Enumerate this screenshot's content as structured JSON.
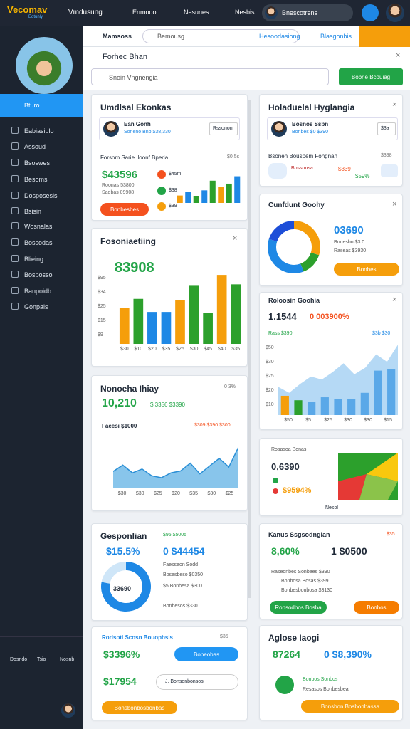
{
  "topbar": {
    "logo": "Vecomav",
    "logo_sub": "Edtunly",
    "nav": [
      "Vmdusung",
      "Enmodo",
      "Nesunes",
      "Nesbis"
    ],
    "search": "Bnescotrens"
  },
  "sidebar": {
    "active": "Bturo",
    "items": [
      "Eabiasiulo",
      "Assoud",
      "Bsoswes",
      "Besoms",
      "Dosposesis",
      "Bsisin",
      "Wosnalas",
      "Bossodas",
      "Blieing",
      "Bosposso",
      "Banpoidb",
      "Gonpais"
    ],
    "bottom": [
      "Dosndo",
      "Tsio",
      "Nosnb"
    ]
  },
  "toolbar": {
    "tabs": [
      "Mamsoss",
      "Bemousg",
      "Hesoodasiong",
      "Blasgonbis"
    ]
  },
  "panel": {
    "title": "Forhec Bhan",
    "search": "Snoin Vngnengia",
    "button": "Bobrie Bcouiag"
  },
  "left_cards": [
    {
      "title": "Umdlsal Ekonkas",
      "profile_name": "Ean Gonh",
      "profile_sub": "Soneno Bnb $38,330",
      "profile_button": "Rssonon",
      "section": "Forsom Sarie Iloonf Bperia",
      "section_note": "$0.5s",
      "value": "$43596",
      "lines": [
        "Roonas 53800",
        "Sadbas 09908"
      ],
      "button": "Bonbesbes",
      "legend": [
        "$45m",
        "$38",
        "$39"
      ],
      "chart": {
        "type": "bar",
        "ylim": [
          0,
          10
        ],
        "values": [
          2,
          3,
          1.8,
          3.4,
          6,
          4.4,
          5.2,
          7.2
        ],
        "colors": [
          "#f59e0b",
          "#1e88e5",
          "#2ca02c",
          "#1e88e5",
          "#2ca02c",
          "#f59e0b",
          "#2ca02c",
          "#1e88e5"
        ]
      }
    },
    {
      "title": "Fosoniaetiing",
      "value": "83908",
      "yticks": [
        "$95",
        "$34",
        "$25",
        "$15",
        "$9"
      ],
      "xlabels": [
        "$30",
        "$10",
        "$20",
        "$35",
        "$25",
        "$30",
        "$45",
        "$40",
        "$35"
      ],
      "chart": {
        "type": "bar",
        "ylim": [
          0,
          100
        ],
        "values": [
          50,
          62,
          44,
          44,
          60,
          80,
          43,
          95,
          82
        ],
        "colors": [
          "#f59e0b",
          "#2ca02c",
          "#1e88e5",
          "#1e88e5",
          "#f59e0b",
          "#2ca02c",
          "#2ca02c",
          "#f59e0b",
          "#2ca02c"
        ]
      }
    },
    {
      "title": "Nonoeha Ihiay",
      "note": "0 3%",
      "value": "10,210",
      "value_sub": "$ 3356 $3390",
      "section": "Faeesi $1000",
      "section_note": "$309 $390 $300",
      "xlabels": [
        "$30",
        "$30",
        "$25",
        "$20",
        "$35",
        "$30",
        "$25"
      ],
      "chart": {
        "type": "area",
        "ylim": [
          0,
          100
        ],
        "values": [
          35,
          48,
          32,
          40,
          26,
          22,
          32,
          36,
          52,
          30,
          46,
          62,
          44,
          85
        ],
        "color": "#6ab7e6"
      }
    },
    {
      "title": "Gesponlian",
      "note": "$95 $5005",
      "value": "$15.5%",
      "value2": "0 $44454",
      "donut_label": "33690",
      "lines": [
        "Faesseon Sodd",
        "Bosesbeso $0350",
        "$5 Bonbesa $300",
        "Bonbesos $330"
      ],
      "chart": {
        "type": "donut",
        "values": [
          78,
          22
        ],
        "colors": [
          "#1e88e5",
          "#cfe6f8"
        ]
      }
    },
    {
      "title": "Rorisoti Scosn Bouopbsis",
      "note": "$35",
      "value": "$3396%",
      "pill": "Bobeobas",
      "value2": "$17954",
      "input": "J. Bonsonbonsos",
      "button": "Bonsbonbosbonbas"
    }
  ],
  "right_cards": [
    {
      "title": "Holaduelal Hyglangia",
      "profile_name": "Bosnos Ssbn",
      "profile_sub": "Bonbes $0 $390",
      "profile_button": "$3a",
      "section": "Bsonen Bouspem Fongnan",
      "section_note": "$398",
      "row": "Bossonsa",
      "row_value": "$339",
      "row_value2": "$59%"
    },
    {
      "title": "Cunfdunt Goohy",
      "value": "03690",
      "lines": [
        "Bonesbn $3 0",
        "Raseas $3930"
      ],
      "button": "Bonbes",
      "chart": {
        "type": "donut",
        "values": [
          30,
          14,
          36,
          20
        ],
        "colors": [
          "#f59e0b",
          "#2ca02c",
          "#1e88e5",
          "#1d4ed8"
        ]
      }
    },
    {
      "title": "Roloosin Goohia",
      "value": "1.1544",
      "value2": "0 003900%",
      "legend_left": "Rass $390",
      "legend_right": "$3b $30",
      "yticks": [
        "$50",
        "$30",
        "$25",
        "$20",
        "$10"
      ],
      "xlabels": [
        "$50",
        "$5",
        "$25",
        "$30",
        "$30",
        "$15"
      ],
      "chart": {
        "type": "combo",
        "ylim": [
          0,
          100
        ],
        "bars": [
          26,
          20,
          18,
          24,
          22,
          22,
          30,
          60,
          62
        ],
        "bar_colors": [
          "#f59e0b",
          "#2ca02c",
          "#5aa8e8",
          "#5aa8e8",
          "#5aa8e8",
          "#5aa8e8",
          "#5aa8e8",
          "#5aa8e8",
          "#5aa8e8"
        ],
        "area": [
          38,
          30,
          42,
          52,
          48,
          58,
          70,
          55,
          64,
          82,
          72,
          95
        ],
        "color": "#b5d9f5"
      }
    },
    {
      "title": "Rosasoa Bonas",
      "value": "0,6390",
      "value2": "$9594%",
      "caption": "Nesol"
    },
    {
      "title": "Kanus Ssgsodngian",
      "note": "$35",
      "value": "8,60%",
      "value2": "1 $0500",
      "lines": [
        "Raseonbes Sonbees $390",
        "Bonbosa Bosas $399",
        "Bonbesbonbosa $3130"
      ],
      "button": "Robsodbos Bosba",
      "button2": "Bonbos"
    },
    {
      "title": "Aglose Iaogi",
      "value": "87264",
      "value2": "0 $8,390%",
      "lines": [
        "Bonbos Sonbos",
        "Resasos Bonbesbea"
      ],
      "button": "Bonsbon Bosbonbassa"
    }
  ]
}
